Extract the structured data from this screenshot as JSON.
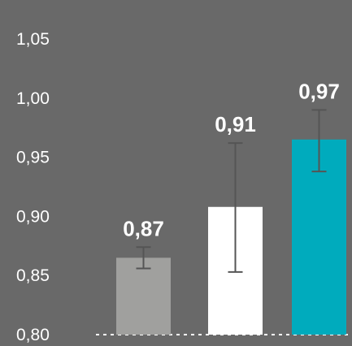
{
  "chart_data": {
    "type": "bar",
    "title": "",
    "xlabel": "",
    "ylabel": "",
    "ylim": [
      0.8,
      1.05
    ],
    "yticks": [
      "1,05",
      "1,00",
      "0,95",
      "0,90",
      "0,85",
      "0,80"
    ],
    "grid": false,
    "background_color": "#696969",
    "bars": [
      {
        "value": 0.865,
        "error_low": 0.856,
        "error_high": 0.874,
        "label": "0,87",
        "color": "#a0a09e"
      },
      {
        "value": 0.908,
        "error_low": 0.853,
        "error_high": 0.962,
        "label": "0,91",
        "color": "#ffffff"
      },
      {
        "value": 0.965,
        "error_low": 0.938,
        "error_high": 0.99,
        "label": "0,97",
        "color": "#00abbd"
      }
    ]
  }
}
